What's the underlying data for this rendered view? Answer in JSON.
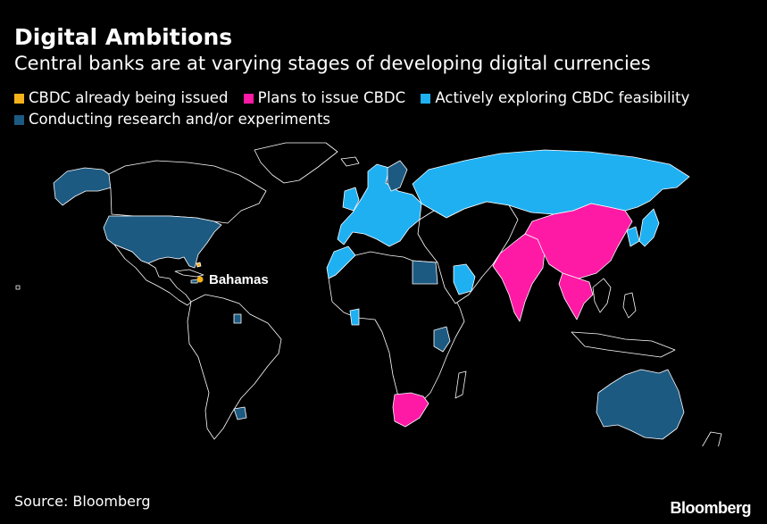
{
  "header": {
    "title": "Digital Ambitions",
    "subtitle": "Central banks are at varying stages of developing digital currencies"
  },
  "legend": [
    {
      "label": "CBDC already being issued",
      "color": "#f5b31b"
    },
    {
      "label": "Plans to issue CBDC",
      "color": "#ff1aa6"
    },
    {
      "label": "Actively exploring CBDC feasibility",
      "color": "#1fb0f2"
    },
    {
      "label": "Conducting research and/or experiments",
      "color": "#1d5a82"
    }
  ],
  "map": {
    "land_color": "#000000",
    "border_color": "#ffffff",
    "annotation": {
      "label": "Bahamas",
      "status": "CBDC already being issued"
    },
    "regions": [
      {
        "name": "Bahamas",
        "status": "CBDC already being issued"
      },
      {
        "name": "China",
        "status": "Plans to issue CBDC"
      },
      {
        "name": "India",
        "status": "Plans to issue CBDC"
      },
      {
        "name": "Thailand",
        "status": "Plans to issue CBDC"
      },
      {
        "name": "Cambodia",
        "status": "Plans to issue CBDC"
      },
      {
        "name": "South Africa",
        "status": "Plans to issue CBDC"
      },
      {
        "name": "Russia",
        "status": "Actively exploring CBDC feasibility"
      },
      {
        "name": "Europe",
        "status": "Actively exploring CBDC feasibility"
      },
      {
        "name": "Morocco",
        "status": "Actively exploring CBDC feasibility"
      },
      {
        "name": "Japan",
        "status": "Actively exploring CBDC feasibility"
      },
      {
        "name": "South Korea",
        "status": "Actively exploring CBDC feasibility"
      },
      {
        "name": "Ghana",
        "status": "Actively exploring CBDC feasibility"
      },
      {
        "name": "Saudi Arabia",
        "status": "Actively exploring CBDC feasibility"
      },
      {
        "name": "United States",
        "status": "Conducting research and/or experiments"
      },
      {
        "name": "Alaska",
        "status": "Conducting research and/or experiments"
      },
      {
        "name": "Australia",
        "status": "Conducting research and/or experiments"
      },
      {
        "name": "Egypt",
        "status": "Conducting research and/or experiments"
      },
      {
        "name": "Kenya",
        "status": "Conducting research and/or experiments"
      },
      {
        "name": "Uruguay",
        "status": "Conducting research and/or experiments"
      },
      {
        "name": "Suriname",
        "status": "Conducting research and/or experiments"
      },
      {
        "name": "Jamaica",
        "status": "Conducting research and/or experiments"
      },
      {
        "name": "Sweden",
        "status": "Conducting research and/or experiments"
      }
    ]
  },
  "footer": {
    "source": "Source: Bloomberg",
    "logo": "Bloomberg"
  }
}
